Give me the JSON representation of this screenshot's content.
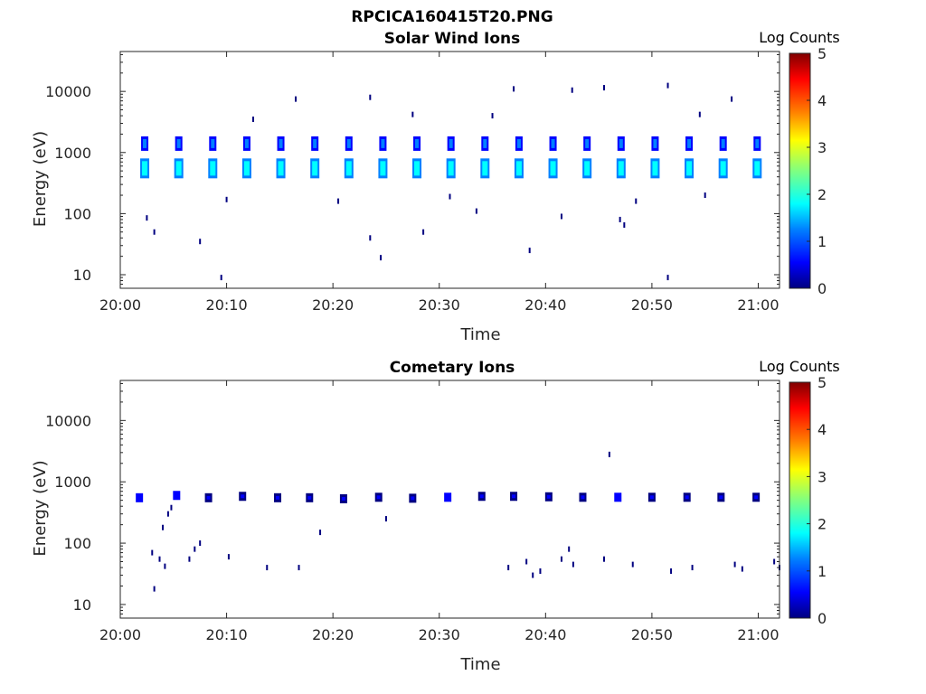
{
  "figure_title": "RPCICA160415T20.PNG",
  "colorscale": [
    "#000080",
    "#0000ff",
    "#0080ff",
    "#00ffff",
    "#80ff80",
    "#ffff00",
    "#ff8000",
    "#ff0000",
    "#800000"
  ],
  "chart_data": [
    {
      "type": "heatmap",
      "title": "Solar Wind Ions",
      "xlabel": "Time",
      "ylabel": "Energy (eV)",
      "yscale": "log",
      "xlim": [
        "20:00",
        "21:02"
      ],
      "ylim": [
        6,
        45000
      ],
      "xticks": [
        "20:00",
        "20:10",
        "20:20",
        "20:30",
        "20:40",
        "20:50",
        "21:00"
      ],
      "yticks": [
        10,
        100,
        1000,
        10000
      ],
      "ytick_labels": [
        "10",
        "100",
        "1000",
        "10000"
      ],
      "colorbar": {
        "label": "Log Counts",
        "min": 0,
        "max": 5,
        "ticks": [
          "0",
          "1",
          "2",
          "3",
          "4",
          "5"
        ]
      },
      "legend": "none",
      "grid": false,
      "note_clusters": "Repeating clusters of counts near 550 eV and 1400 eV every ~3.2 minutes",
      "clusters": [
        {
          "time": "20:02.3",
          "energy": 550,
          "log_counts": 2.0
        },
        {
          "time": "20:02.3",
          "energy": 1400,
          "log_counts": 1.4
        },
        {
          "time": "20:05.5",
          "energy": 550,
          "log_counts": 2.0
        },
        {
          "time": "20:05.5",
          "energy": 1400,
          "log_counts": 1.4
        },
        {
          "time": "20:08.7",
          "energy": 550,
          "log_counts": 2.0
        },
        {
          "time": "20:08.7",
          "energy": 1400,
          "log_counts": 1.4
        },
        {
          "time": "20:11.9",
          "energy": 550,
          "log_counts": 2.0
        },
        {
          "time": "20:11.9",
          "energy": 1400,
          "log_counts": 1.4
        },
        {
          "time": "20:15.1",
          "energy": 550,
          "log_counts": 2.0
        },
        {
          "time": "20:15.1",
          "energy": 1400,
          "log_counts": 1.4
        },
        {
          "time": "20:18.3",
          "energy": 550,
          "log_counts": 2.0
        },
        {
          "time": "20:18.3",
          "energy": 1400,
          "log_counts": 1.4
        },
        {
          "time": "20:21.5",
          "energy": 550,
          "log_counts": 2.0
        },
        {
          "time": "20:21.5",
          "energy": 1400,
          "log_counts": 1.4
        },
        {
          "time": "20:24.7",
          "energy": 550,
          "log_counts": 2.0
        },
        {
          "time": "20:24.7",
          "energy": 1400,
          "log_counts": 1.4
        },
        {
          "time": "20:27.9",
          "energy": 550,
          "log_counts": 2.0
        },
        {
          "time": "20:27.9",
          "energy": 1400,
          "log_counts": 1.4
        },
        {
          "time": "20:31.1",
          "energy": 550,
          "log_counts": 2.0
        },
        {
          "time": "20:31.1",
          "energy": 1400,
          "log_counts": 1.4
        },
        {
          "time": "20:34.3",
          "energy": 550,
          "log_counts": 2.0
        },
        {
          "time": "20:34.3",
          "energy": 1400,
          "log_counts": 1.4
        },
        {
          "time": "20:37.5",
          "energy": 550,
          "log_counts": 2.0
        },
        {
          "time": "20:37.5",
          "energy": 1400,
          "log_counts": 1.4
        },
        {
          "time": "20:40.7",
          "energy": 550,
          "log_counts": 2.0
        },
        {
          "time": "20:40.7",
          "energy": 1400,
          "log_counts": 1.4
        },
        {
          "time": "20:43.9",
          "energy": 550,
          "log_counts": 2.0
        },
        {
          "time": "20:43.9",
          "energy": 1400,
          "log_counts": 1.4
        },
        {
          "time": "20:47.1",
          "energy": 550,
          "log_counts": 2.0
        },
        {
          "time": "20:47.1",
          "energy": 1400,
          "log_counts": 1.4
        },
        {
          "time": "20:50.3",
          "energy": 550,
          "log_counts": 2.0
        },
        {
          "time": "20:50.3",
          "energy": 1400,
          "log_counts": 1.4
        },
        {
          "time": "20:53.5",
          "energy": 550,
          "log_counts": 2.0
        },
        {
          "time": "20:53.5",
          "energy": 1400,
          "log_counts": 1.4
        },
        {
          "time": "20:56.7",
          "energy": 550,
          "log_counts": 2.0
        },
        {
          "time": "20:56.7",
          "energy": 1400,
          "log_counts": 1.4
        },
        {
          "time": "20:59.9",
          "energy": 550,
          "log_counts": 2.0
        },
        {
          "time": "20:59.9",
          "energy": 1400,
          "log_counts": 1.4
        }
      ],
      "scatter_points": [
        {
          "time": "20:09.5",
          "energy": 9
        },
        {
          "time": "20:51.5",
          "energy": 9
        },
        {
          "time": "20:03.2",
          "energy": 50
        },
        {
          "time": "20:07.5",
          "energy": 35
        },
        {
          "time": "20:23.5",
          "energy": 40
        },
        {
          "time": "20:24.5",
          "energy": 19
        },
        {
          "time": "20:28.5",
          "energy": 50
        },
        {
          "time": "20:38.5",
          "energy": 25
        },
        {
          "time": "20:02.5",
          "energy": 85
        },
        {
          "time": "20:47.0",
          "energy": 80
        },
        {
          "time": "20:47.4",
          "energy": 65
        },
        {
          "time": "20:31.0",
          "energy": 190
        },
        {
          "time": "20:41.5",
          "energy": 90
        },
        {
          "time": "20:16.5",
          "energy": 7500
        },
        {
          "time": "20:23.5",
          "energy": 8000
        },
        {
          "time": "20:37.0",
          "energy": 11000
        },
        {
          "time": "20:42.5",
          "energy": 10500
        },
        {
          "time": "20:45.5",
          "energy": 11500
        },
        {
          "time": "20:51.5",
          "energy": 12500
        },
        {
          "time": "20:57.5",
          "energy": 7500
        },
        {
          "time": "20:12.5",
          "energy": 3500
        },
        {
          "time": "20:27.5",
          "energy": 4200
        },
        {
          "time": "20:35.0",
          "energy": 4000
        },
        {
          "time": "20:54.5",
          "energy": 4200
        },
        {
          "time": "20:10.0",
          "energy": 170
        },
        {
          "time": "20:20.5",
          "energy": 160
        },
        {
          "time": "20:33.5",
          "energy": 110
        },
        {
          "time": "20:48.5",
          "energy": 160
        },
        {
          "time": "20:55.0",
          "energy": 200
        }
      ]
    },
    {
      "type": "heatmap",
      "title": "Cometary Ions",
      "xlabel": "Time",
      "ylabel": "Energy (eV)",
      "yscale": "log",
      "xlim": [
        "20:00",
        "21:02"
      ],
      "ylim": [
        6,
        45000
      ],
      "xticks": [
        "20:00",
        "20:10",
        "20:20",
        "20:30",
        "20:40",
        "20:50",
        "21:00"
      ],
      "yticks": [
        10,
        100,
        1000,
        10000
      ],
      "ytick_labels": [
        "10",
        "100",
        "1000",
        "10000"
      ],
      "colorbar": {
        "label": "Log Counts",
        "min": 0,
        "max": 5,
        "ticks": [
          "0",
          "1",
          "2",
          "3",
          "4",
          "5"
        ]
      },
      "legend": "none",
      "grid": false,
      "clusters": [
        {
          "time": "20:01.8",
          "energy": 550,
          "log_counts": 0.8
        },
        {
          "time": "20:05.3",
          "energy": 600,
          "log_counts": 0.8
        },
        {
          "time": "20:08.3",
          "energy": 550,
          "log_counts": 0.6
        },
        {
          "time": "20:11.5",
          "energy": 580,
          "log_counts": 0.6
        },
        {
          "time": "20:14.8",
          "energy": 550,
          "log_counts": 0.6
        },
        {
          "time": "20:17.8",
          "energy": 550,
          "log_counts": 0.6
        },
        {
          "time": "20:21.0",
          "energy": 530,
          "log_counts": 0.6
        },
        {
          "time": "20:24.3",
          "energy": 560,
          "log_counts": 0.6
        },
        {
          "time": "20:27.5",
          "energy": 540,
          "log_counts": 0.6
        },
        {
          "time": "20:30.8",
          "energy": 560,
          "log_counts": 0.7
        },
        {
          "time": "20:34.0",
          "energy": 580,
          "log_counts": 0.6
        },
        {
          "time": "20:37.0",
          "energy": 580,
          "log_counts": 0.6
        },
        {
          "time": "20:40.3",
          "energy": 570,
          "log_counts": 0.6
        },
        {
          "time": "20:43.5",
          "energy": 560,
          "log_counts": 0.6
        },
        {
          "time": "20:46.8",
          "energy": 560,
          "log_counts": 0.7
        },
        {
          "time": "20:50.0",
          "energy": 560,
          "log_counts": 0.6
        },
        {
          "time": "20:53.3",
          "energy": 560,
          "log_counts": 0.6
        },
        {
          "time": "20:56.5",
          "energy": 560,
          "log_counts": 0.6
        },
        {
          "time": "20:59.8",
          "energy": 560,
          "log_counts": 0.6
        }
      ],
      "scatter_points": [
        {
          "time": "20:03.2",
          "energy": 18
        },
        {
          "time": "20:03.0",
          "energy": 70
        },
        {
          "time": "20:03.7",
          "energy": 55
        },
        {
          "time": "20:04.2",
          "energy": 42
        },
        {
          "time": "20:04.0",
          "energy": 180
        },
        {
          "time": "20:04.5",
          "energy": 300
        },
        {
          "time": "20:04.8",
          "energy": 380
        },
        {
          "time": "20:06.5",
          "energy": 55
        },
        {
          "time": "20:07.0",
          "energy": 80
        },
        {
          "time": "20:07.5",
          "energy": 100
        },
        {
          "time": "20:10.2",
          "energy": 60
        },
        {
          "time": "20:13.8",
          "energy": 40
        },
        {
          "time": "20:16.8",
          "energy": 40
        },
        {
          "time": "20:18.8",
          "energy": 150
        },
        {
          "time": "20:25.0",
          "energy": 250
        },
        {
          "time": "20:36.5",
          "energy": 40
        },
        {
          "time": "20:38.2",
          "energy": 50
        },
        {
          "time": "20:38.8",
          "energy": 30
        },
        {
          "time": "20:39.5",
          "energy": 35
        },
        {
          "time": "20:41.5",
          "energy": 55
        },
        {
          "time": "20:42.2",
          "energy": 80
        },
        {
          "time": "20:42.6",
          "energy": 45
        },
        {
          "time": "20:45.5",
          "energy": 55
        },
        {
          "time": "20:48.2",
          "energy": 45
        },
        {
          "time": "20:51.8",
          "energy": 35
        },
        {
          "time": "20:53.8",
          "energy": 40
        },
        {
          "time": "20:57.8",
          "energy": 45
        },
        {
          "time": "20:58.5",
          "energy": 38
        },
        {
          "time": "21:01.5",
          "energy": 50
        },
        {
          "time": "21:02.0",
          "energy": 40
        },
        {
          "time": "20:46.0",
          "energy": 2800
        }
      ]
    }
  ]
}
